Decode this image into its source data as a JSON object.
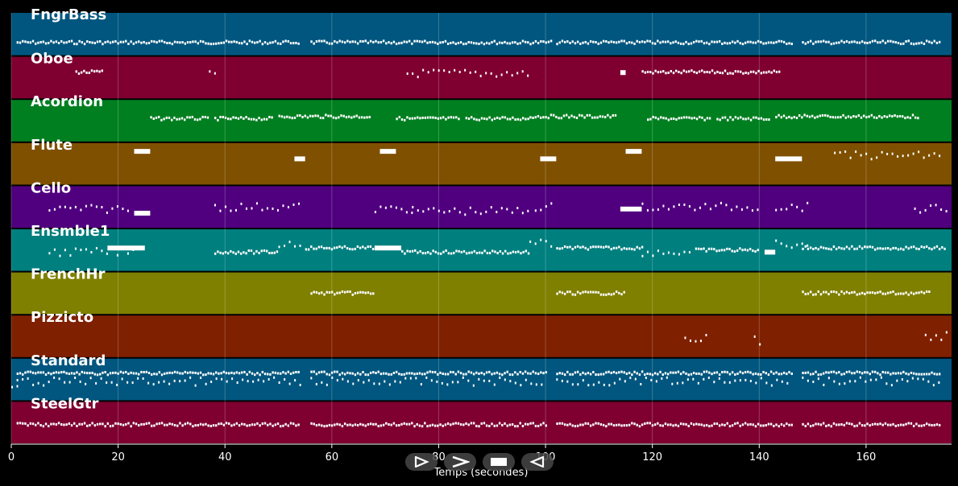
{
  "chart_data": {
    "type": "piano-roll",
    "xlabel": "Temps (secondes)",
    "xlim": [
      0,
      176
    ],
    "x_ticks": [
      0,
      20,
      40,
      60,
      80,
      100,
      120,
      140,
      160
    ],
    "grid": true,
    "tracks": [
      {
        "name": "FngrBass",
        "color": "#00567f",
        "segments": [
          [
            1,
            54,
            0.7,
            "dense"
          ],
          [
            56,
            101,
            0.7,
            "dense"
          ],
          [
            102,
            146,
            0.7,
            "dense"
          ],
          [
            148,
            174,
            0.7,
            "dense"
          ]
        ]
      },
      {
        "name": "Oboe",
        "color": "#7f0030",
        "segments": [
          [
            12,
            17,
            0.37,
            "dense"
          ],
          [
            37,
            38,
            0.4,
            "sparse"
          ],
          [
            74,
            97,
            0.4,
            "sparse"
          ],
          [
            114,
            115,
            0.38,
            "block"
          ],
          [
            118,
            144,
            0.37,
            "dense"
          ]
        ]
      },
      {
        "name": "Acordion",
        "color": "#007f20",
        "segments": [
          [
            26,
            37,
            0.45,
            "dense"
          ],
          [
            38,
            49,
            0.45,
            "dense"
          ],
          [
            50,
            67,
            0.4,
            "dense"
          ],
          [
            72,
            84,
            0.45,
            "dense"
          ],
          [
            85,
            97,
            0.45,
            "dense"
          ],
          [
            97,
            113,
            0.4,
            "dense"
          ],
          [
            119,
            131,
            0.45,
            "dense"
          ],
          [
            132,
            142,
            0.45,
            "dense"
          ],
          [
            143,
            170,
            0.4,
            "dense"
          ]
        ]
      },
      {
        "name": "Flute",
        "color": "#7f5000",
        "segments": [
          [
            23,
            26,
            0.2,
            "block"
          ],
          [
            53,
            55,
            0.38,
            "block"
          ],
          [
            69,
            72,
            0.2,
            "block"
          ],
          [
            99,
            102,
            0.38,
            "block"
          ],
          [
            115,
            118,
            0.2,
            "block"
          ],
          [
            143,
            148,
            0.38,
            "block"
          ],
          [
            154,
            174,
            0.3,
            "sparse"
          ]
        ]
      },
      {
        "name": "Cello",
        "color": "#50007f",
        "segments": [
          [
            7,
            22,
            0.55,
            "sparse"
          ],
          [
            23,
            26,
            0.65,
            "block"
          ],
          [
            38,
            54,
            0.5,
            "sparse"
          ],
          [
            68,
            75,
            0.55,
            "sparse"
          ],
          [
            75,
            97,
            0.6,
            "sparse"
          ],
          [
            98,
            101,
            0.5,
            "sparse"
          ],
          [
            114,
            118,
            0.55,
            "block"
          ],
          [
            118,
            140,
            0.5,
            "sparse"
          ],
          [
            143,
            149,
            0.5,
            "sparse"
          ],
          [
            169,
            175,
            0.55,
            "sparse"
          ]
        ]
      },
      {
        "name": "Ensmble1",
        "color": "#007f7f",
        "segments": [
          [
            7,
            23,
            0.55,
            "sparse"
          ],
          [
            18,
            25,
            0.45,
            "block"
          ],
          [
            38,
            50,
            0.55,
            "dense"
          ],
          [
            50,
            54,
            0.35,
            "sparse"
          ],
          [
            55,
            68,
            0.45,
            "dense"
          ],
          [
            68,
            73,
            0.45,
            "block"
          ],
          [
            73,
            97,
            0.55,
            "dense"
          ],
          [
            97,
            101,
            0.35,
            "sparse"
          ],
          [
            102,
            118,
            0.45,
            "dense"
          ],
          [
            118,
            127,
            0.55,
            "sparse"
          ],
          [
            128,
            140,
            0.5,
            "dense"
          ],
          [
            141,
            143,
            0.55,
            "block"
          ],
          [
            143,
            149,
            0.35,
            "sparse"
          ],
          [
            148,
            175,
            0.45,
            "dense"
          ]
        ]
      },
      {
        "name": "FrenchHr",
        "color": "#7f7f00",
        "segments": [
          [
            56,
            68,
            0.5,
            "dense"
          ],
          [
            102,
            115,
            0.5,
            "dense"
          ],
          [
            148,
            172,
            0.5,
            "dense"
          ]
        ]
      },
      {
        "name": "Pizzicto",
        "color": "#7f2000",
        "segments": [
          [
            126,
            130,
            0.55,
            "sparse"
          ],
          [
            139,
            140,
            0.6,
            "sparse"
          ],
          [
            171,
            175,
            0.5,
            "sparse"
          ]
        ]
      },
      {
        "name": "Standard",
        "color": "#00567f",
        "segments": [
          [
            0,
            1,
            0.7,
            "sparse"
          ],
          [
            1,
            54,
            0.35,
            "dense"
          ],
          [
            1,
            54,
            0.55,
            "sparse"
          ],
          [
            56,
            100,
            0.35,
            "dense"
          ],
          [
            56,
            100,
            0.55,
            "sparse"
          ],
          [
            102,
            146,
            0.35,
            "dense"
          ],
          [
            102,
            146,
            0.55,
            "sparse"
          ],
          [
            148,
            174,
            0.35,
            "dense"
          ],
          [
            148,
            174,
            0.55,
            "sparse"
          ]
        ]
      },
      {
        "name": "SteelGtr",
        "color": "#7f0030",
        "segments": [
          [
            1,
            54,
            0.55,
            "dense"
          ],
          [
            56,
            100,
            0.55,
            "dense"
          ],
          [
            102,
            146,
            0.55,
            "dense"
          ],
          [
            148,
            174,
            0.55,
            "dense"
          ]
        ]
      }
    ]
  },
  "controls": [
    {
      "name": "play-icon"
    },
    {
      "name": "fast-forward-icon"
    },
    {
      "name": "stop-icon"
    },
    {
      "name": "rewind-icon"
    }
  ]
}
